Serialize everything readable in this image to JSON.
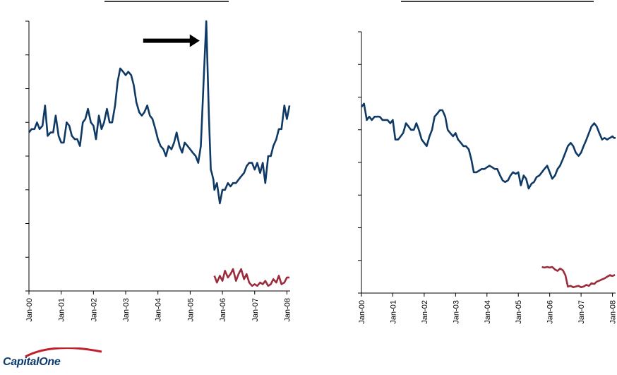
{
  "logo": {
    "text": "CapitalOne"
  },
  "colors": {
    "primary_series": "#0f3a66",
    "secondary_series": "#9b2c3b",
    "axis": "#000000",
    "arrow": "#000000"
  },
  "chart_data": [
    {
      "type": "line",
      "title": "",
      "xlabel": "",
      "ylabel": "",
      "x_ticks": [
        "Jan-00",
        "Jan-01",
        "Jan-02",
        "Jan-03",
        "Jan-04",
        "Jan-05",
        "Jan-06",
        "Jan-07",
        "Jan-08"
      ],
      "y_tick_count": 8,
      "xlim": [
        0,
        8.1
      ],
      "ylim": [
        0,
        8
      ],
      "annotations": [
        {
          "type": "arrow",
          "x": 5.6,
          "y": 7.4,
          "direction": "right"
        }
      ],
      "series": [
        {
          "x": [
            0,
            0.08,
            0.17,
            0.25,
            0.33,
            0.42,
            0.5,
            0.58,
            0.67,
            0.75,
            0.83,
            0.92,
            1,
            1.08,
            1.17,
            1.25,
            1.33,
            1.42,
            1.5,
            1.58,
            1.67,
            1.75,
            1.83,
            1.92,
            2,
            2.08,
            2.17,
            2.25,
            2.33,
            2.42,
            2.5,
            2.58,
            2.67,
            2.75,
            2.83,
            2.92,
            3,
            3.08,
            3.17,
            3.25,
            3.33,
            3.42,
            3.5,
            3.58,
            3.67,
            3.75,
            3.83,
            3.92,
            4,
            4.08,
            4.17,
            4.25,
            4.33,
            4.42,
            4.5,
            4.58,
            4.67,
            4.75,
            4.83,
            4.92,
            5,
            5.08,
            5.17,
            5.25,
            5.33,
            5.42,
            5.5,
            5.58,
            5.64,
            5.67,
            5.72,
            5.75,
            5.83,
            5.92,
            6,
            6.08,
            6.17,
            6.25,
            6.33,
            6.42,
            6.5,
            6.58,
            6.67,
            6.75,
            6.83,
            6.92,
            7,
            7.08,
            7.17,
            7.25,
            7.33,
            7.42,
            7.5,
            7.58,
            7.67,
            7.75,
            7.83,
            7.92,
            8,
            8.08
          ],
          "values": [
            4.7,
            4.8,
            4.8,
            5.0,
            4.8,
            4.9,
            5.5,
            4.6,
            4.7,
            4.7,
            5.2,
            4.6,
            4.4,
            4.4,
            5.0,
            4.9,
            4.6,
            4.5,
            4.5,
            4.3,
            5.0,
            5.1,
            5.4,
            5.0,
            4.9,
            4.5,
            5.2,
            4.8,
            5.0,
            5.4,
            5.0,
            5.0,
            5.5,
            6.2,
            6.6,
            6.5,
            6.4,
            6.5,
            6.4,
            6.1,
            5.6,
            5.3,
            5.2,
            5.3,
            5.5,
            5.2,
            5.1,
            4.8,
            4.5,
            4.3,
            4.2,
            4.0,
            4.3,
            4.2,
            4.4,
            4.7,
            4.3,
            4.1,
            4.4,
            4.3,
            4.2,
            4.1,
            4.0,
            3.8,
            4.3,
            6.3,
            8.0,
            5.2,
            3.6,
            3.5,
            3.3,
            3.0,
            3.2,
            2.6,
            3.0,
            3.0,
            3.2,
            3.1,
            3.2,
            3.2,
            3.3,
            3.4,
            3.5,
            3.7,
            3.8,
            3.8,
            3.6,
            3.8,
            3.5,
            3.8,
            3.2,
            4.0,
            4.0,
            4.3,
            4.5,
            4.8,
            4.8,
            5.5,
            5.1,
            5.5
          ]
        },
        {
          "x": [
            5.75,
            5.83,
            5.92,
            6,
            6.08,
            6.17,
            6.25,
            6.33,
            6.42,
            6.5,
            6.58,
            6.67,
            6.75,
            6.83,
            6.92,
            7,
            7.08,
            7.17,
            7.25,
            7.33,
            7.42,
            7.5,
            7.58,
            7.67,
            7.75,
            7.83,
            7.92,
            8,
            8.08
          ],
          "values": [
            0.45,
            0.25,
            0.45,
            0.3,
            0.6,
            0.4,
            0.5,
            0.65,
            0.3,
            0.5,
            0.65,
            0.35,
            0.5,
            0.25,
            0.15,
            0.2,
            0.15,
            0.25,
            0.2,
            0.3,
            0.15,
            0.2,
            0.35,
            0.25,
            0.45,
            0.2,
            0.25,
            0.4,
            0.4
          ]
        }
      ]
    },
    {
      "type": "line",
      "title": "",
      "xlabel": "",
      "ylabel": "",
      "x_ticks": [
        "Jan-00",
        "Jan-01",
        "Jan-02",
        "Jan-03",
        "Jan-04",
        "Jan-05",
        "Jan-06",
        "Jan-07",
        "Jan-08"
      ],
      "y_tick_count": 8,
      "xlim": [
        0,
        8.1
      ],
      "ylim": [
        0,
        8
      ],
      "series": [
        {
          "x": [
            0,
            0.08,
            0.17,
            0.25,
            0.33,
            0.42,
            0.5,
            0.58,
            0.67,
            0.75,
            0.83,
            0.92,
            1,
            1.08,
            1.17,
            1.25,
            1.33,
            1.42,
            1.5,
            1.58,
            1.67,
            1.75,
            1.83,
            1.92,
            2,
            2.08,
            2.17,
            2.25,
            2.33,
            2.42,
            2.5,
            2.58,
            2.67,
            2.75,
            2.83,
            2.92,
            3,
            3.08,
            3.17,
            3.25,
            3.33,
            3.42,
            3.5,
            3.58,
            3.67,
            3.75,
            3.83,
            3.92,
            4,
            4.08,
            4.17,
            4.25,
            4.33,
            4.42,
            4.5,
            4.58,
            4.67,
            4.75,
            4.83,
            4.92,
            5,
            5.08,
            5.17,
            5.25,
            5.33,
            5.42,
            5.5,
            5.58,
            5.67,
            5.75,
            5.83,
            5.92,
            6,
            6.08,
            6.17,
            6.25,
            6.33,
            6.42,
            6.5,
            6.58,
            6.67,
            6.75,
            6.83,
            6.92,
            7,
            7.08,
            7.17,
            7.25,
            7.33,
            7.42,
            7.5,
            7.58,
            7.67,
            7.75,
            7.83,
            7.92,
            8,
            8.05,
            8.1
          ],
          "values": [
            5.7,
            5.8,
            5.3,
            5.4,
            5.3,
            5.4,
            5.4,
            5.4,
            5.3,
            5.3,
            5.3,
            5.2,
            5.3,
            4.7,
            4.7,
            4.8,
            4.9,
            5.2,
            5.1,
            5.0,
            5.0,
            5.2,
            5.0,
            4.7,
            4.6,
            4.5,
            4.8,
            5.0,
            5.4,
            5.5,
            5.6,
            5.6,
            5.4,
            5.0,
            4.9,
            4.8,
            4.9,
            4.7,
            4.6,
            4.5,
            4.5,
            4.4,
            4.1,
            3.7,
            3.7,
            3.75,
            3.8,
            3.8,
            3.85,
            3.9,
            3.85,
            3.8,
            3.8,
            3.6,
            3.45,
            3.4,
            3.45,
            3.6,
            3.7,
            3.65,
            3.7,
            3.3,
            3.6,
            3.5,
            3.2,
            3.35,
            3.4,
            3.55,
            3.6,
            3.7,
            3.8,
            3.9,
            3.7,
            3.5,
            3.6,
            3.8,
            3.9,
            4.1,
            4.3,
            4.5,
            4.6,
            4.5,
            4.3,
            4.2,
            4.3,
            4.5,
            4.7,
            4.9,
            5.1,
            5.2,
            5.1,
            4.9,
            4.7,
            4.75,
            4.7,
            4.75,
            4.8,
            4.75,
            4.75
          ]
        },
        {
          "x": [
            5.75,
            5.83,
            5.92,
            6,
            6.08,
            6.17,
            6.25,
            6.33,
            6.42,
            6.5,
            6.58,
            6.67,
            6.75,
            6.83,
            6.92,
            7,
            7.08,
            7.17,
            7.25,
            7.33,
            7.42,
            7.5,
            7.58,
            7.67,
            7.75,
            7.83,
            7.92,
            8,
            8.08
          ],
          "values": [
            0.8,
            0.78,
            0.8,
            0.78,
            0.8,
            0.72,
            0.68,
            0.75,
            0.7,
            0.55,
            0.2,
            0.22,
            0.18,
            0.2,
            0.22,
            0.18,
            0.2,
            0.25,
            0.22,
            0.3,
            0.28,
            0.35,
            0.38,
            0.42,
            0.45,
            0.5,
            0.55,
            0.52,
            0.56
          ]
        }
      ]
    }
  ]
}
